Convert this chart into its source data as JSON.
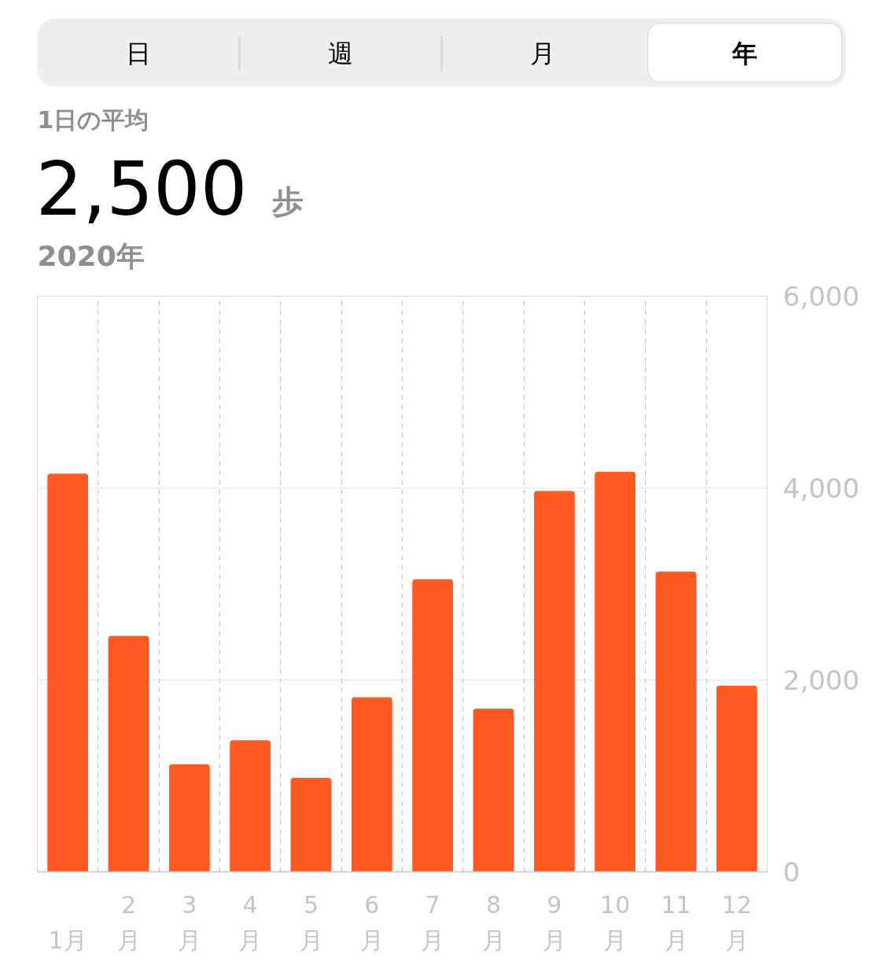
{
  "chart_data": {
    "type": "bar",
    "annotations": [
      "日",
      "週",
      "月",
      "年",
      "1日の平均",
      "2,500",
      "歩",
      "2020年"
    ],
    "categories": [
      "1月",
      "2月",
      "3月",
      "4月",
      "5月",
      "6月",
      "7月",
      "8月",
      "9月",
      "10月",
      "11月",
      "12月"
    ],
    "values": [
      4150,
      2460,
      1120,
      1370,
      980,
      1820,
      3050,
      1700,
      3970,
      4170,
      3130,
      1940
    ],
    "color": "#fe5a22",
    "ylim": [
      0,
      6000
    ],
    "yticks": [
      {
        "value": 0,
        "label": "0"
      },
      {
        "value": 2000,
        "label": "2,000"
      },
      {
        "value": 4000,
        "label": "4,000"
      },
      {
        "value": 6000,
        "label": "6,000"
      }
    ],
    "grid": true
  }
}
